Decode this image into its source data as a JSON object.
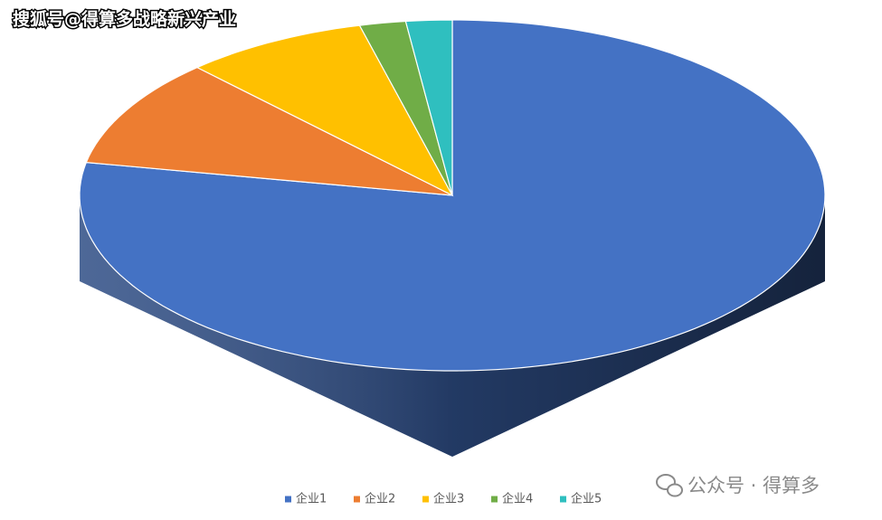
{
  "chart_data": {
    "type": "pie3d",
    "watermark": "搜狐号@得算多战略新兴产业",
    "source_watermark": "公众号 · 得算多",
    "categories": [
      "企业1",
      "企业2",
      "企业3",
      "企业4",
      "企业5"
    ],
    "values": [
      78,
      10,
      8,
      2,
      2
    ],
    "colors": [
      "#4472c4",
      "#ed7d31",
      "#ffc000",
      "#70ad47",
      "#2fbfbf"
    ],
    "side_colors": [
      "#2e4d85",
      "#a8561f",
      "#b38600",
      "#4d7a31",
      "#218585"
    ],
    "legend": "bottom"
  }
}
